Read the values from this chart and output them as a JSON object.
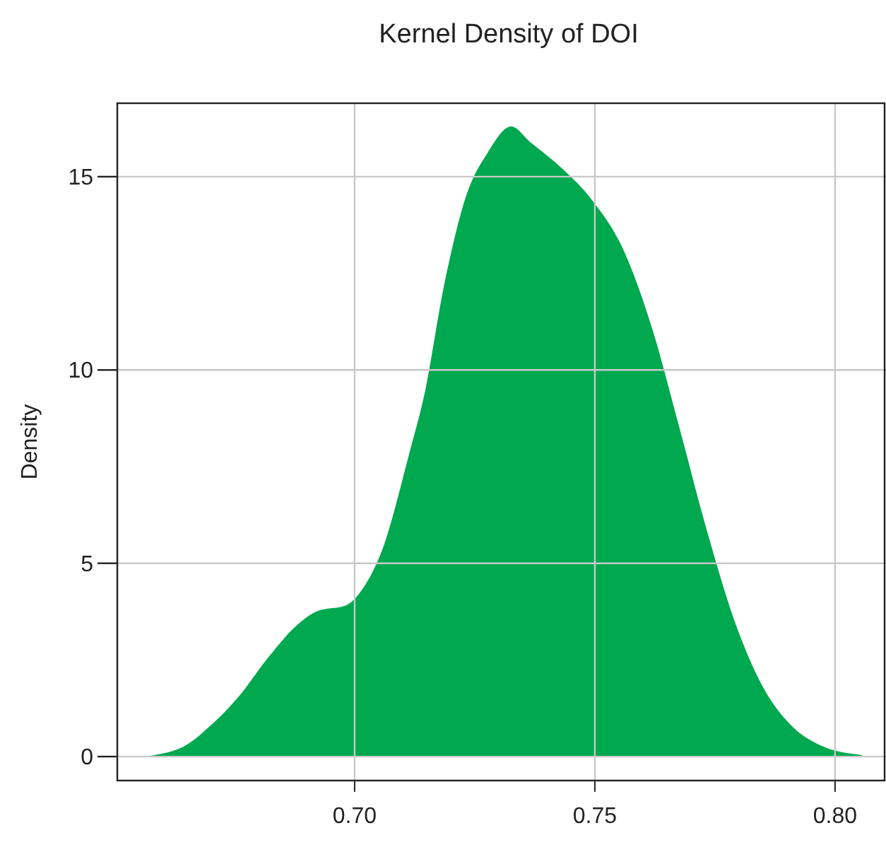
{
  "chart_data": {
    "type": "area",
    "title": "Kernel Density of DOI",
    "ylabel": "Density",
    "x": [
      0.656,
      0.6644,
      0.67,
      0.676,
      0.682,
      0.688,
      0.6924,
      0.698,
      0.702,
      0.7056,
      0.7115,
      0.7144,
      0.7188,
      0.7232,
      0.7276,
      0.7326,
      0.7365,
      0.7424,
      0.7497,
      0.7556,
      0.7621,
      0.7674,
      0.7732,
      0.7791,
      0.785,
      0.7909,
      0.7968,
      0.8056
    ],
    "series": [
      {
        "color": "#00a84f",
        "values": [
          0,
          0.26,
          0.8,
          1.57,
          2.56,
          3.4,
          3.77,
          3.9,
          4.4,
          5.3,
          7.9,
          9.3,
          12.3,
          14.5,
          15.6,
          16.3,
          15.9,
          15.3,
          14.35,
          13.2,
          11.0,
          8.6,
          5.9,
          3.5,
          1.8,
          0.8,
          0.3,
          0.04
        ]
      }
    ],
    "xlim": [
      0.6506,
      0.8106
    ],
    "ylim": [
      -0.62,
      16.9
    ],
    "xticks": [
      {
        "value": 0.7,
        "label": "0.70"
      },
      {
        "value": 0.75,
        "label": "0.75"
      },
      {
        "value": 0.8,
        "label": "0.80"
      }
    ],
    "yticks": [
      0,
      5,
      10,
      15
    ],
    "grid": true
  }
}
